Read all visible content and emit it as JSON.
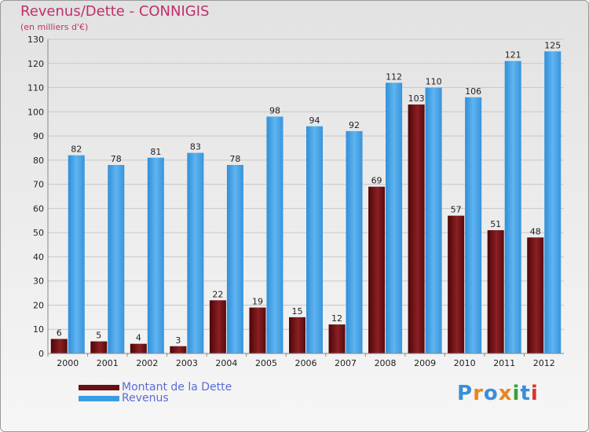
{
  "header": {
    "title": "Revenus/Dette - CONNIGIS",
    "subtitle": "(en milliers d'€)"
  },
  "legend": [
    {
      "label": "Montant de la Dette",
      "color": "#6b0f12"
    },
    {
      "label": "Revenus",
      "color": "#3a9ee6"
    }
  ],
  "logo": {
    "text": "Proxiti"
  },
  "colors": {
    "dette": "#7a1518",
    "revenus": "#4aa6ec",
    "title": "#c0306a",
    "legend_text": "#5a6bd8"
  },
  "chart_data": {
    "type": "bar",
    "title": "Revenus/Dette - CONNIGIS",
    "subtitle": "(en milliers d'€)",
    "categories": [
      "2000",
      "2001",
      "2002",
      "2003",
      "2004",
      "2005",
      "2006",
      "2007",
      "2008",
      "2009",
      "2010",
      "2011",
      "2012"
    ],
    "series": [
      {
        "name": "Montant de la Dette",
        "values": [
          6,
          5,
          4,
          3,
          22,
          19,
          15,
          12,
          69,
          103,
          57,
          51,
          48
        ]
      },
      {
        "name": "Revenus",
        "values": [
          82,
          78,
          81,
          83,
          78,
          98,
          94,
          92,
          112,
          110,
          106,
          121,
          125
        ]
      }
    ],
    "yticks": [
      0,
      10,
      20,
      30,
      40,
      50,
      60,
      70,
      80,
      90,
      100,
      110,
      120,
      130
    ],
    "ylim": [
      0,
      130
    ],
    "grid": true,
    "legend_position": "bottom-left"
  }
}
